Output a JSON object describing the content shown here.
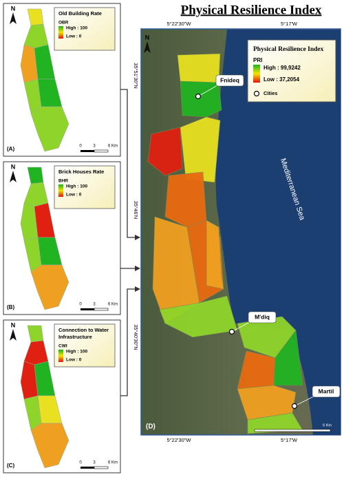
{
  "title": "Physical Resilience Index",
  "panels": [
    {
      "label": "(A)",
      "north": "N",
      "legend_title": [
        "Old Building Rate"
      ],
      "legend_code": "OBR",
      "legend_high": "High : 100",
      "legend_low": "Low : 0",
      "scale": [
        "0",
        "3",
        "6 Km"
      ]
    },
    {
      "label": "(B)",
      "north": "N",
      "legend_title": [
        "Brick Houses Rate"
      ],
      "legend_code": "BHR",
      "legend_high": "High : 100",
      "legend_low": "Low : 0",
      "scale": [
        "0",
        "3",
        "6 Km"
      ]
    },
    {
      "label": "(C)",
      "north": "N",
      "legend_title": [
        "Connection to Water",
        "Infrastructure"
      ],
      "legend_code": "CWI",
      "legend_high": "High : 100",
      "legend_low": "Low : 0",
      "scale": [
        "0",
        "3",
        "6 Km"
      ]
    }
  ],
  "main_map": {
    "label": "(D)",
    "north": "N",
    "legend_title": "Physical Resilience Index",
    "legend_code": "PRI",
    "legend_high": "High : 99,9242",
    "legend_low": "Low : 37,2054",
    "legend_cities": "Cities",
    "cities": [
      "Fnideq",
      "M'diq",
      "Martil"
    ],
    "sea": "Mediterranean Sea",
    "top_coords": [
      "5°22'30\"W",
      "5°17'W"
    ],
    "bottom_coords": [
      "5°22'30\"W",
      "5°17'W"
    ],
    "left_coords": [
      "35°51'30\"N",
      "35°46'N",
      "35°40'30\"N"
    ],
    "scale": "6 Km"
  }
}
